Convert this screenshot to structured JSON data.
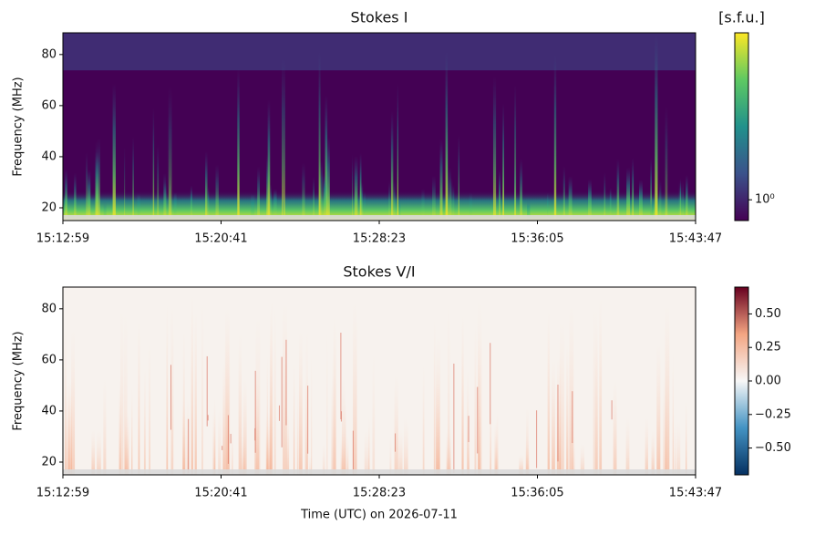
{
  "chart_data": [
    {
      "type": "heatmap",
      "title": "Stokes I",
      "ylabel": "Frequency (MHz)",
      "xlim": [
        54779,
        56627
      ],
      "xticks": [
        {
          "value": 54779,
          "label": "15:12:59"
        },
        {
          "value": 55241,
          "label": "15:20:41"
        },
        {
          "value": 55703,
          "label": "15:28:23"
        },
        {
          "value": 56165,
          "label": "15:36:05"
        },
        {
          "value": 56627,
          "label": "15:43:47"
        }
      ],
      "ylim": [
        15,
        88.5
      ],
      "yticks": [
        20,
        40,
        60,
        80
      ],
      "colormap": "viridis",
      "colorbar_label": "[s.f.u.]",
      "colorbar_log": true,
      "clim": [
        0.8,
        6
      ],
      "cticks": [
        {
          "value": 1,
          "label": "10⁰"
        }
      ]
    },
    {
      "type": "heatmap",
      "title": "Stokes V/I",
      "ylabel": "Frequency (MHz)",
      "xlabel": "Time (UTC) on 2026-07-11",
      "xlim": [
        54779,
        56627
      ],
      "xticks": [
        {
          "value": 54779,
          "label": "15:12:59"
        },
        {
          "value": 55241,
          "label": "15:20:41"
        },
        {
          "value": 55703,
          "label": "15:28:23"
        },
        {
          "value": 56165,
          "label": "15:36:05"
        },
        {
          "value": 56627,
          "label": "15:43:47"
        }
      ],
      "ylim": [
        15,
        88.5
      ],
      "yticks": [
        20,
        40,
        60,
        80
      ],
      "colormap": "RdBu_r",
      "colorbar_log": false,
      "clim": [
        -0.7,
        0.7
      ],
      "cticks": [
        {
          "value": -0.5,
          "label": "−0.50"
        },
        {
          "value": -0.25,
          "label": "−0.25"
        },
        {
          "value": 0,
          "label": "0.00"
        },
        {
          "value": 0.25,
          "label": "0.25"
        },
        {
          "value": 0.5,
          "label": "0.50"
        }
      ]
    }
  ]
}
